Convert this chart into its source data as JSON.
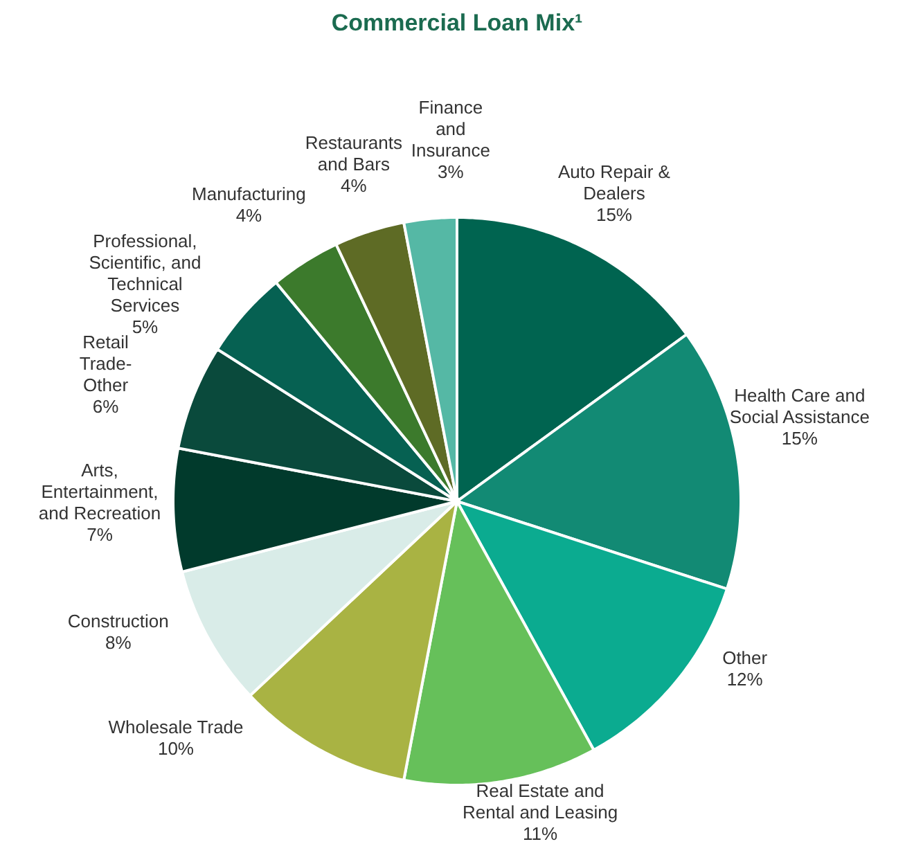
{
  "chart_data": {
    "type": "pie",
    "title": "Commercial Loan Mix¹",
    "categories": [
      "Auto Repair & Dealers",
      "Health Care and Social Assistance",
      "Other",
      "Real Estate and Rental and Leasing",
      "Wholesale Trade",
      "Construction",
      "Arts, Entertainment, and Recreation",
      "Retail Trade-Other",
      "Professional, Scientific, and Technical Services",
      "Manufacturing",
      "Restaurants and Bars",
      "Finance and Insurance"
    ],
    "values": [
      15,
      15,
      12,
      11,
      10,
      8,
      7,
      6,
      5,
      4,
      4,
      3
    ],
    "value_labels": [
      "15%",
      "15%",
      "12%",
      "11%",
      "10%",
      "8%",
      "7%",
      "6%",
      "5%",
      "4%",
      "4%",
      "3%"
    ],
    "colors": [
      "#006450",
      "#128a74",
      "#0bab90",
      "#66c05a",
      "#a9b343",
      "#d9ece8",
      "#013a2c",
      "#0a4a3c",
      "#066152",
      "#3c7a2c",
      "#5e6b25",
      "#55b8a5"
    ]
  }
}
